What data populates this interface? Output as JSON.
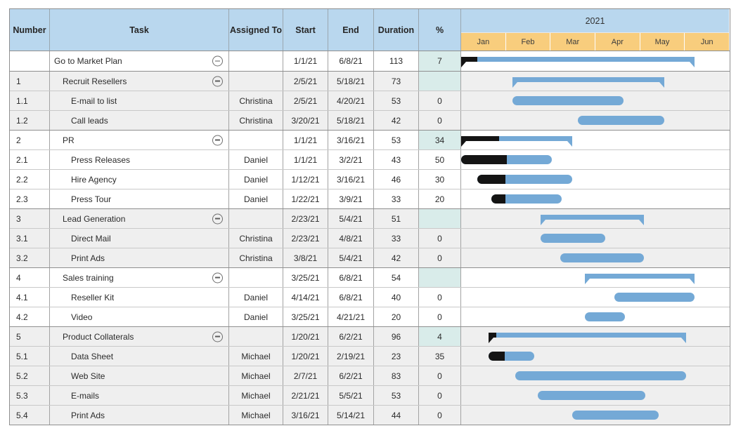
{
  "table": {
    "columns": [
      {
        "label": "Number"
      },
      {
        "label": "Task"
      },
      {
        "label": "Assigned To"
      },
      {
        "label": "Start"
      },
      {
        "label": "End"
      },
      {
        "label": "Duration"
      },
      {
        "label": "%"
      }
    ]
  },
  "timeline": {
    "year": "2021",
    "months": [
      "Jan",
      "Feb",
      "Mar",
      "Apr",
      "May",
      "Jun"
    ]
  },
  "rows": [
    {
      "number": "",
      "task": "Go to Market Plan",
      "level": 0,
      "is_parent": true,
      "assigned_to": "",
      "start": "1/1/21",
      "end": "6/8/21",
      "duration": "113",
      "percent": "7",
      "shade": "white"
    },
    {
      "number": "1",
      "task": "Recruit Resellers",
      "level": 1,
      "is_parent": true,
      "assigned_to": "",
      "start": "2/5/21",
      "end": "5/18/21",
      "duration": "73",
      "percent": "",
      "shade": "gray"
    },
    {
      "number": "1.1",
      "task": "E-mail to list",
      "level": 2,
      "is_parent": false,
      "assigned_to": "Christina",
      "start": "2/5/21",
      "end": "4/20/21",
      "duration": "53",
      "percent": "0",
      "shade": "gray"
    },
    {
      "number": "1.2",
      "task": "Call leads",
      "level": 2,
      "is_parent": false,
      "assigned_to": "Christina",
      "start": "3/20/21",
      "end": "5/18/21",
      "duration": "42",
      "percent": "0",
      "shade": "gray"
    },
    {
      "number": "2",
      "task": "PR",
      "level": 1,
      "is_parent": true,
      "assigned_to": "",
      "start": "1/1/21",
      "end": "3/16/21",
      "duration": "53",
      "percent": "34",
      "shade": "white"
    },
    {
      "number": "2.1",
      "task": "Press Releases",
      "level": 2,
      "is_parent": false,
      "assigned_to": "Daniel",
      "start": "1/1/21",
      "end": "3/2/21",
      "duration": "43",
      "percent": "50",
      "shade": "white"
    },
    {
      "number": "2.2",
      "task": "Hire Agency",
      "level": 2,
      "is_parent": false,
      "assigned_to": "Daniel",
      "start": "1/12/21",
      "end": "3/16/21",
      "duration": "46",
      "percent": "30",
      "shade": "white"
    },
    {
      "number": "2.3",
      "task": "Press Tour",
      "level": 2,
      "is_parent": false,
      "assigned_to": "Daniel",
      "start": "1/22/21",
      "end": "3/9/21",
      "duration": "33",
      "percent": "20",
      "shade": "white"
    },
    {
      "number": "3",
      "task": "Lead Generation",
      "level": 1,
      "is_parent": true,
      "assigned_to": "",
      "start": "2/23/21",
      "end": "5/4/21",
      "duration": "51",
      "percent": "",
      "shade": "gray"
    },
    {
      "number": "3.1",
      "task": "Direct Mail",
      "level": 2,
      "is_parent": false,
      "assigned_to": "Christina",
      "start": "2/23/21",
      "end": "4/8/21",
      "duration": "33",
      "percent": "0",
      "shade": "gray"
    },
    {
      "number": "3.2",
      "task": "Print Ads",
      "level": 2,
      "is_parent": false,
      "assigned_to": "Christina",
      "start": "3/8/21",
      "end": "5/4/21",
      "duration": "42",
      "percent": "0",
      "shade": "gray"
    },
    {
      "number": "4",
      "task": "Sales training",
      "level": 1,
      "is_parent": true,
      "assigned_to": "",
      "start": "3/25/21",
      "end": "6/8/21",
      "duration": "54",
      "percent": "",
      "shade": "white"
    },
    {
      "number": "4.1",
      "task": "Reseller Kit",
      "level": 2,
      "is_parent": false,
      "assigned_to": "Daniel",
      "start": "4/14/21",
      "end": "6/8/21",
      "duration": "40",
      "percent": "0",
      "shade": "white"
    },
    {
      "number": "4.2",
      "task": "Video",
      "level": 2,
      "is_parent": false,
      "assigned_to": "Daniel",
      "start": "3/25/21",
      "end": "4/21/21",
      "duration": "20",
      "percent": "0",
      "shade": "white"
    },
    {
      "number": "5",
      "task": "Product Collaterals",
      "level": 1,
      "is_parent": true,
      "assigned_to": "",
      "start": "1/20/21",
      "end": "6/2/21",
      "duration": "96",
      "percent": "4",
      "shade": "gray"
    },
    {
      "number": "5.1",
      "task": "Data Sheet",
      "level": 2,
      "is_parent": false,
      "assigned_to": "Michael",
      "start": "1/20/21",
      "end": "2/19/21",
      "duration": "23",
      "percent": "35",
      "shade": "gray"
    },
    {
      "number": "5.2",
      "task": "Web Site",
      "level": 2,
      "is_parent": false,
      "assigned_to": "Michael",
      "start": "2/7/21",
      "end": "6/2/21",
      "duration": "83",
      "percent": "0",
      "shade": "gray"
    },
    {
      "number": "5.3",
      "task": "E-mails",
      "level": 2,
      "is_parent": false,
      "assigned_to": "Michael",
      "start": "2/21/21",
      "end": "5/5/21",
      "duration": "53",
      "percent": "0",
      "shade": "gray"
    },
    {
      "number": "5.4",
      "task": "Print Ads",
      "level": 2,
      "is_parent": false,
      "assigned_to": "Michael",
      "start": "3/16/21",
      "end": "5/14/21",
      "duration": "44",
      "percent": "0",
      "shade": "gray"
    }
  ],
  "icons": {
    "collapse": "minus-circle-icon"
  },
  "colors": {
    "header_blue": "#b9d7ee",
    "month_orange": "#f8cd7d",
    "bar_blue": "#74a9d6",
    "bar_progress_black": "#141414",
    "percent_teal": "#d9ecea",
    "row_alt_gray": "#efefef",
    "gantt_gridline": "#dfe2e6"
  }
}
